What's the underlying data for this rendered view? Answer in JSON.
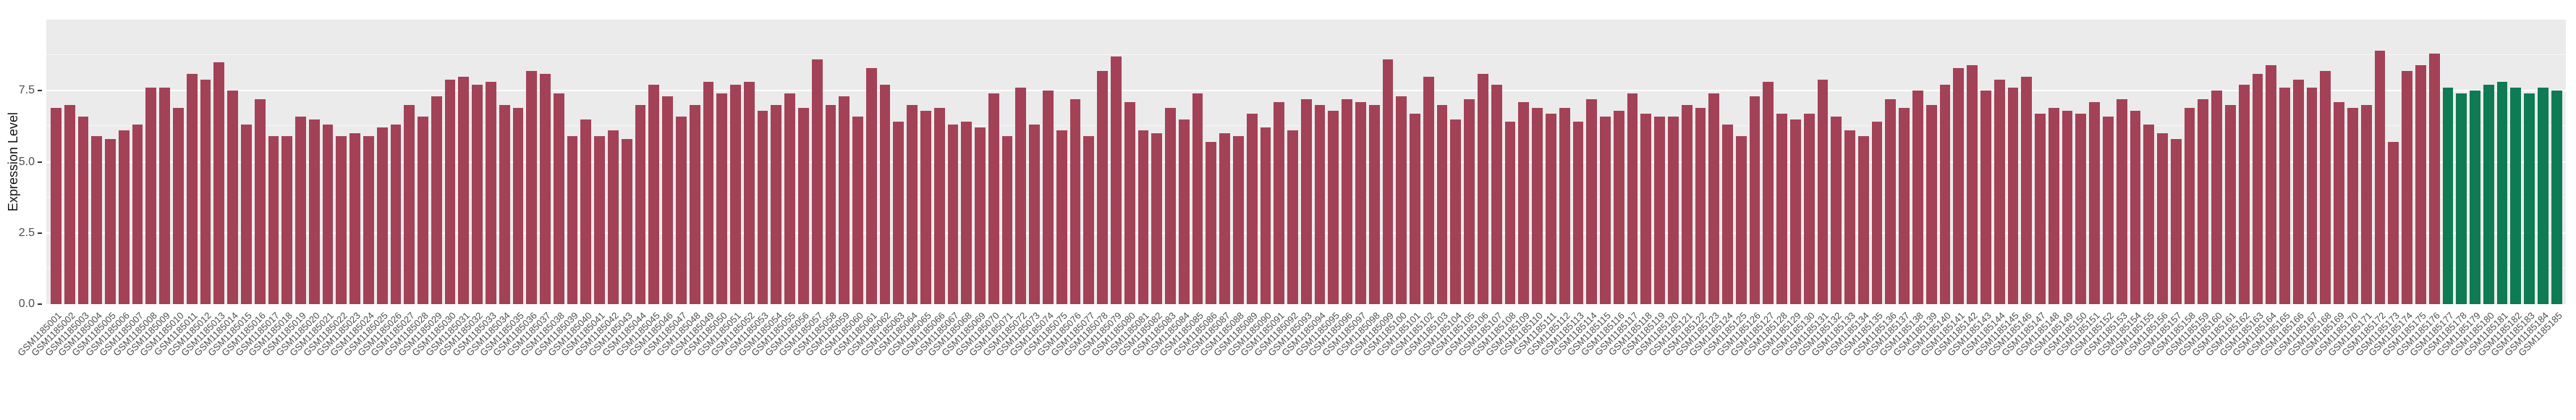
{
  "chart_data": {
    "type": "bar",
    "title": "",
    "xlabel": "",
    "ylabel": "Expression Level",
    "ylim": [
      0,
      10
    ],
    "yticks": [
      "0.0",
      "2.5",
      "5.0",
      "7.5"
    ],
    "grid": true,
    "plot_background": "#ebebeb",
    "grid_color": "#ffffff",
    "bar_color": "#a34257",
    "highlight_color": "#0e7b55",
    "highlight_start_index": 176,
    "legend": "none",
    "categories": [
      "GSM1185001",
      "GSM1185002",
      "GSM1185003",
      "GSM1185004",
      "GSM1185005",
      "GSM1185006",
      "GSM1185007",
      "GSM1185008",
      "GSM1185009",
      "GSM1185010",
      "GSM1185011",
      "GSM1185012",
      "GSM1185013",
      "GSM1185014",
      "GSM1185015",
      "GSM1185016",
      "GSM1185017",
      "GSM1185018",
      "GSM1185019",
      "GSM1185020",
      "GSM1185021",
      "GSM1185022",
      "GSM1185023",
      "GSM1185024",
      "GSM1185025",
      "GSM1185026",
      "GSM1185027",
      "GSM1185028",
      "GSM1185029",
      "GSM1185030",
      "GSM1185031",
      "GSM1185032",
      "GSM1185033",
      "GSM1185034",
      "GSM1185035",
      "GSM1185036",
      "GSM1185037",
      "GSM1185038",
      "GSM1185039",
      "GSM1185040",
      "GSM1185041",
      "GSM1185042",
      "GSM1185043",
      "GSM1185044",
      "GSM1185045",
      "GSM1185046",
      "GSM1185047",
      "GSM1185048",
      "GSM1185049",
      "GSM1185050",
      "GSM1185051",
      "GSM1185052",
      "GSM1185053",
      "GSM1185054",
      "GSM1185055",
      "GSM1185056",
      "GSM1185057",
      "GSM1185058",
      "GSM1185059",
      "GSM1185060",
      "GSM1185061",
      "GSM1185062",
      "GSM1185063",
      "GSM1185064",
      "GSM1185065",
      "GSM1185066",
      "GSM1185067",
      "GSM1185068",
      "GSM1185069",
      "GSM1185070",
      "GSM1185071",
      "GSM1185072",
      "GSM1185073",
      "GSM1185074",
      "GSM1185075",
      "GSM1185076",
      "GSM1185077",
      "GSM1185078",
      "GSM1185079",
      "GSM1185080",
      "GSM1185081",
      "GSM1185082",
      "GSM1185083",
      "GSM1185084",
      "GSM1185085",
      "GSM1185086",
      "GSM1185087",
      "GSM1185088",
      "GSM1185089",
      "GSM1185090",
      "GSM1185091",
      "GSM1185092",
      "GSM1185093",
      "GSM1185094",
      "GSM1185095",
      "GSM1185096",
      "GSM1185097",
      "GSM1185098",
      "GSM1185099",
      "GSM1185100",
      "GSM1185101",
      "GSM1185102",
      "GSM1185103",
      "GSM1185104",
      "GSM1185105",
      "GSM1185106",
      "GSM1185107",
      "GSM1185108",
      "GSM1185109",
      "GSM1185110",
      "GSM1185111",
      "GSM1185112",
      "GSM1185113",
      "GSM1185114",
      "GSM1185115",
      "GSM1185116",
      "GSM1185117",
      "GSM1185118",
      "GSM1185119",
      "GSM1185120",
      "GSM1185121",
      "GSM1185122",
      "GSM1185123",
      "GSM1185124",
      "GSM1185125",
      "GSM1185126",
      "GSM1185127",
      "GSM1185128",
      "GSM1185129",
      "GSM1185130",
      "GSM1185131",
      "GSM1185132",
      "GSM1185133",
      "GSM1185134",
      "GSM1185135",
      "GSM1185136",
      "GSM1185137",
      "GSM1185138",
      "GSM1185139",
      "GSM1185140",
      "GSM1185141",
      "GSM1185142",
      "GSM1185143",
      "GSM1185144",
      "GSM1185145",
      "GSM1185146",
      "GSM1185147",
      "GSM1185148",
      "GSM1185149",
      "GSM1185150",
      "GSM1185151",
      "GSM1185152",
      "GSM1185153",
      "GSM1185154",
      "GSM1185155",
      "GSM1185156",
      "GSM1185157",
      "GSM1185158",
      "GSM1185159",
      "GSM1185160",
      "GSM1185161",
      "GSM1185162",
      "GSM1185163",
      "GSM1185164",
      "GSM1185165",
      "GSM1185166",
      "GSM1185167",
      "GSM1185168",
      "GSM1185169",
      "GSM1185170",
      "GSM1185171",
      "GSM1185172",
      "GSM1185173",
      "GSM1185174",
      "GSM1185175",
      "GSM1185176",
      "GSM1185177",
      "GSM1185178",
      "GSM1185179",
      "GSM1185180",
      "GSM1185181",
      "GSM1185182",
      "GSM1185183",
      "GSM1185184",
      "GSM1185185"
    ],
    "values": [
      6.9,
      7.0,
      6.6,
      5.9,
      5.8,
      6.1,
      6.3,
      7.6,
      7.6,
      6.9,
      8.1,
      7.9,
      8.5,
      7.5,
      6.3,
      7.2,
      5.9,
      5.9,
      6.6,
      6.5,
      6.3,
      5.9,
      6.0,
      5.9,
      6.2,
      6.3,
      7.0,
      6.6,
      7.3,
      7.9,
      8.0,
      7.7,
      7.8,
      7.0,
      6.9,
      8.2,
      8.1,
      7.4,
      5.9,
      6.5,
      5.9,
      6.1,
      5.8,
      7.0,
      7.7,
      7.3,
      6.6,
      7.0,
      7.8,
      7.4,
      7.7,
      7.8,
      6.8,
      7.0,
      7.4,
      6.9,
      8.6,
      7.0,
      7.3,
      6.6,
      8.3,
      7.7,
      6.4,
      7.0,
      6.8,
      6.9,
      6.3,
      6.4,
      6.2,
      7.4,
      5.9,
      7.6,
      6.3,
      7.5,
      6.1,
      7.2,
      5.9,
      8.2,
      8.7,
      7.1,
      6.1,
      6.0,
      6.9,
      6.5,
      7.4,
      5.7,
      6.0,
      5.9,
      6.7,
      6.2,
      7.1,
      6.1,
      7.2,
      7.0,
      6.8,
      7.2,
      7.1,
      7.0,
      8.6,
      7.3,
      6.7,
      8.0,
      7.0,
      6.5,
      7.2,
      8.1,
      7.7,
      6.4,
      7.1,
      6.9,
      6.7,
      6.9,
      6.4,
      7.2,
      6.6,
      6.8,
      7.4,
      6.7,
      6.6,
      6.6,
      7.0,
      6.9,
      7.4,
      6.3,
      5.9,
      7.3,
      7.8,
      6.7,
      6.5,
      6.7,
      7.9,
      6.6,
      6.1,
      5.9,
      6.4,
      7.2,
      6.9,
      7.5,
      7.0,
      7.7,
      8.3,
      8.4,
      7.5,
      7.9,
      7.6,
      8.0,
      6.7,
      6.9,
      6.8,
      6.7,
      7.1,
      6.6,
      7.2,
      6.8,
      6.3,
      6.0,
      5.8,
      6.9,
      7.2,
      7.5,
      7.0,
      7.7,
      8.1,
      8.4,
      7.6,
      7.9,
      7.6,
      8.2,
      7.1,
      6.9,
      7.0,
      8.9,
      5.7,
      8.2,
      8.4,
      8.8,
      7.6,
      7.4,
      7.5,
      7.7,
      7.8,
      7.6,
      7.4,
      7.6,
      7.5
    ]
  }
}
